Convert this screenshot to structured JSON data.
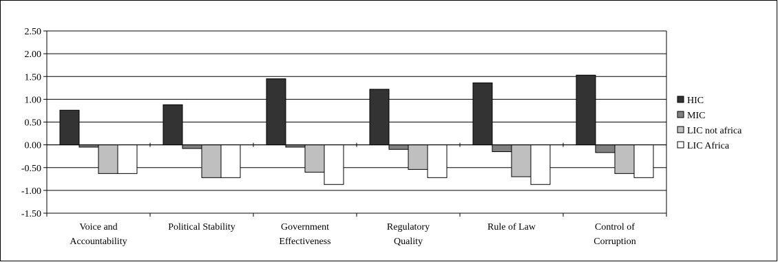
{
  "chart_data": {
    "type": "bar",
    "title": "",
    "xlabel": "",
    "ylabel": "",
    "ylim": [
      -1.5,
      2.5
    ],
    "ytick_step": 0.5,
    "yticks": [
      "2.50",
      "2.00",
      "1.50",
      "1.00",
      "0.50",
      "0.00",
      "-0.50",
      "-1.00",
      "-1.50"
    ],
    "grid": true,
    "legend_position": "right",
    "categories": [
      [
        "Voice and",
        "Accountability"
      ],
      [
        "Political Stability"
      ],
      [
        "Government",
        "Effectiveness"
      ],
      [
        "Regulatory",
        "Quality"
      ],
      [
        "Rule of Law"
      ],
      [
        "Control of",
        "Corruption"
      ]
    ],
    "series": [
      {
        "name": "HIC",
        "color": "#333333",
        "values": [
          0.76,
          0.88,
          1.45,
          1.22,
          1.36,
          1.53
        ]
      },
      {
        "name": "MIC",
        "color": "#808080",
        "values": [
          -0.05,
          -0.08,
          -0.05,
          -0.1,
          -0.15,
          -0.17
        ]
      },
      {
        "name": "LIC not africa",
        "color": "#bfbfbf",
        "values": [
          -0.63,
          -0.72,
          -0.6,
          -0.54,
          -0.7,
          -0.63
        ]
      },
      {
        "name": "LIC Africa",
        "color": "#ffffff",
        "values": [
          -0.63,
          -0.72,
          -0.87,
          -0.72,
          -0.87,
          -0.72
        ]
      }
    ]
  }
}
